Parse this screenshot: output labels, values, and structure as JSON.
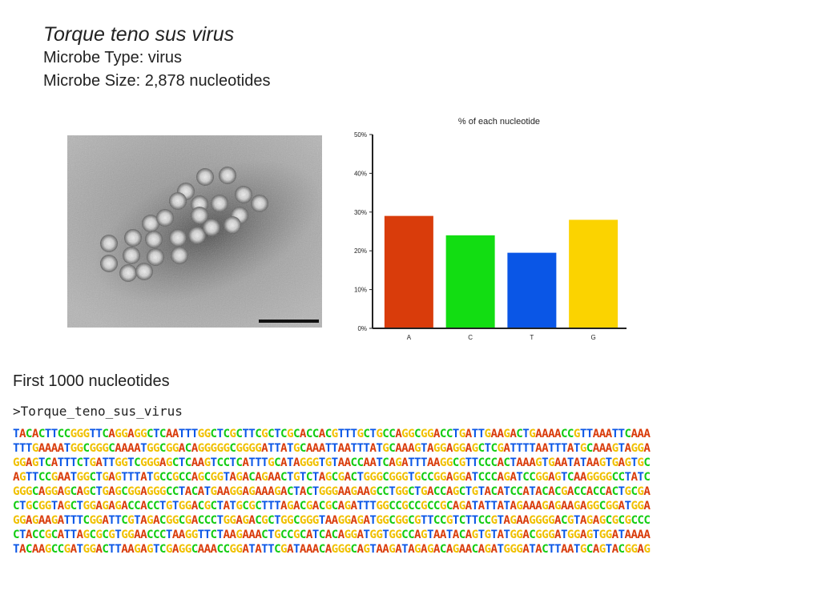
{
  "page": {
    "species_name": "Torque teno sus virus",
    "microbe_type": "Microbe Type: virus",
    "microbe_size": "Microbe Size: 2,878 nucleotides",
    "section_title": "First 1000 nucleotides",
    "fasta_header": ">Torque_teno_sus_virus"
  },
  "image": {
    "description_icon": "electron-micrograph-image"
  },
  "chart_data": {
    "type": "bar",
    "title": "% of each nucleotide",
    "categories": [
      "A",
      "C",
      "T",
      "G"
    ],
    "values": [
      29,
      24,
      19.5,
      28
    ],
    "colors": [
      "#d93c0b",
      "#12dd12",
      "#0a56e6",
      "#fbd300"
    ],
    "ylim": [
      0,
      50
    ],
    "yticks": [
      0,
      10,
      20,
      30,
      40,
      50
    ],
    "ytick_labels": [
      "0%",
      "10%",
      "20%",
      "30%",
      "40%",
      "50%"
    ],
    "xlabel": "",
    "ylabel": "",
    "grid": false
  },
  "nucleotide_colors": {
    "A": "#d93c0b",
    "C": "#12cc12",
    "T": "#0a56e6",
    "G": "#f0c000"
  },
  "sequence_lines": [
    "TACACTTCCGGGTTCAGGAGGCTCAATTTGGCTCGCTTCGCTCGCACCACGTTTGCTGCCAGGCGGACCTGATTGAAGACTGAAAACCGTTAAATTCAAA",
    "TTTGAAAATGGCGGGCAAAATGGCGGACAGGGGGCGGGGATTATGCAAATTAATTTATGCAAAGTAGGAGGAGCTCGATTTTAATTTATGCAAAGTAGGA",
    "GGAGTCATTTCTGATTGGTCGGGAGCTCAAGTCCTCATTTGCATAGGGTGTAACCAATCAGATTTAAGGCGTTCCCACTAAAGTGAATATAAGTGAGTGC",
    "AGTTCCGAATGGCTGAGTTTATGCCGCCAGCGGTAGACAGAACTGTCTAGCGACTGGGCGGGTGCCGGAGGATCCCAGATCCGGAGTCAAGGGGCCTATC",
    "GGGCAGGAGCAGCTGAGCGGAGGGCCTACATGAAGGAGAAAGACTACTGGGAAGAAGCCTGGCTGACCAGCTGTACATCCATACACGACCACCACTGCGA",
    "CTGCGGTAGCTGGAGAGACCACCTGTGGACGCTATGCGCTTTAGACGACGCAGATTTGGCCGCCGCCGCAGATATTATAGAAAGAGAAGAGGCGGATGGA",
    "GGAGAAGATTTCGGATTCGTAGACGGCGACCCTGGAGACGCTGGCGGGTAAGGAGATGGCGGCGTTCCGTCTTCCGTAGAAGGGGACGTAGAGCGCGCCC",
    "CTACCGCATTAGCGCGTGGAACCCTAAGGTTCTAAGAAACTGCCGCATCACAGGATGGTGGCCAGTAATACAGTGTATGGACGGGATGGAGTGGATAAAA",
    "TACAAGCCGATGGACTTAAGAGTCGAGGCAAACCGGATATTCGATAAACAGGGCAGTAAGATAGAGACAGAACAGATGGGATACTTAATGCAGTACGGAG"
  ]
}
